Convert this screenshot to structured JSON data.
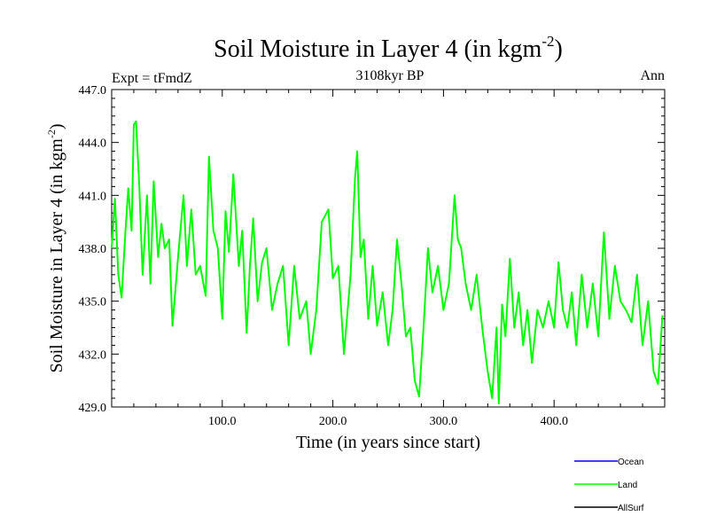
{
  "header": {
    "title_main": "Soil Moisture in Layer 4 (in kgm",
    "title_exp": "-2",
    "title_close": ")",
    "subtitle": "3108kyr BP",
    "left_label": "Expt = tFmdZ",
    "right_label": "Ann"
  },
  "chart_data": {
    "type": "line",
    "title": "Soil Moisture in Layer 4 (in kgm-2)",
    "subtitle": "3108kyr BP",
    "xlabel": "Time (in years since start)",
    "ylabel": "Soil Moisture in Layer 4 (in kgm-2)",
    "ylabel_main": "Soil Moisture in Layer 4 (in kgm",
    "ylabel_exp": "-2",
    "ylabel_close": ")",
    "xlim": [
      0,
      500
    ],
    "ylim": [
      429.0,
      447.0
    ],
    "x_ticks": [
      100,
      200,
      300,
      400
    ],
    "x_tick_labels": [
      "100.0",
      "200.0",
      "300.0",
      "400.0"
    ],
    "y_ticks": [
      429,
      432,
      435,
      438,
      441,
      444,
      447
    ],
    "y_tick_labels": [
      "429.0",
      "432.0",
      "435.0",
      "438.0",
      "441.0",
      "444.0",
      "447.0"
    ],
    "grid": false,
    "legend": [
      {
        "name": "Ocean",
        "color": "#0000ff"
      },
      {
        "name": "Land",
        "color": "#00ff00"
      },
      {
        "name": "AllSurf",
        "color": "#000000"
      }
    ],
    "series": [
      {
        "name": "Land",
        "color": "#00ff00",
        "x": [
          0,
          3,
          6,
          9,
          12,
          15,
          18,
          20,
          22,
          25,
          28,
          32,
          35,
          38,
          42,
          45,
          48,
          52,
          55,
          60,
          65,
          68,
          72,
          76,
          80,
          85,
          88,
          92,
          96,
          100,
          103,
          106,
          110,
          115,
          118,
          122,
          125,
          128,
          132,
          136,
          140,
          145,
          150,
          155,
          160,
          165,
          170,
          176,
          180,
          185,
          190,
          196,
          200,
          205,
          210,
          216,
          220,
          222,
          225,
          228,
          232,
          236,
          240,
          245,
          250,
          254,
          258,
          262,
          266,
          270,
          274,
          278,
          282,
          286,
          290,
          295,
          300,
          305,
          310,
          313,
          316,
          320,
          325,
          330,
          335,
          340,
          344,
          348,
          350,
          353,
          356,
          360,
          364,
          368,
          372,
          376,
          380,
          385,
          390,
          395,
          400,
          404,
          408,
          412,
          416,
          420,
          425,
          430,
          435,
          440,
          445,
          450,
          455,
          460,
          465,
          470,
          475,
          480,
          485,
          490,
          494,
          498
        ],
        "values": [
          438.0,
          440.8,
          436.5,
          435.2,
          438.5,
          441.4,
          439.0,
          445.0,
          445.2,
          441.5,
          436.5,
          441.0,
          436.0,
          441.8,
          437.5,
          439.4,
          438.0,
          438.5,
          433.6,
          437.5,
          441.0,
          437.0,
          440.2,
          436.5,
          437.0,
          435.3,
          443.2,
          439.0,
          438.0,
          434.0,
          440.1,
          437.8,
          442.2,
          437.0,
          439.0,
          433.2,
          437.0,
          439.7,
          435.0,
          437.2,
          438.0,
          434.5,
          436.0,
          437.0,
          432.5,
          437.0,
          434.0,
          435.0,
          432.0,
          434.5,
          439.5,
          440.2,
          436.3,
          437.0,
          432.0,
          436.5,
          442.0,
          443.5,
          437.5,
          438.5,
          434.0,
          437.0,
          433.6,
          435.5,
          432.5,
          434.5,
          438.5,
          436.0,
          433.0,
          433.5,
          430.5,
          429.6,
          433.5,
          438.0,
          435.5,
          437.0,
          434.5,
          436.0,
          441.0,
          438.5,
          438.0,
          436.0,
          434.5,
          436.5,
          433.5,
          431.0,
          429.5,
          433.5,
          429.2,
          434.8,
          433.0,
          437.4,
          433.5,
          435.5,
          432.5,
          434.5,
          431.5,
          434.5,
          433.5,
          435.0,
          433.5,
          437.2,
          434.5,
          433.5,
          435.5,
          432.5,
          436.5,
          433.5,
          436.0,
          433.0,
          438.9,
          434.0,
          437.0,
          435.0,
          434.5,
          433.8,
          436.5,
          432.5,
          435.0,
          431.0,
          430.3,
          434.2
        ]
      }
    ]
  }
}
